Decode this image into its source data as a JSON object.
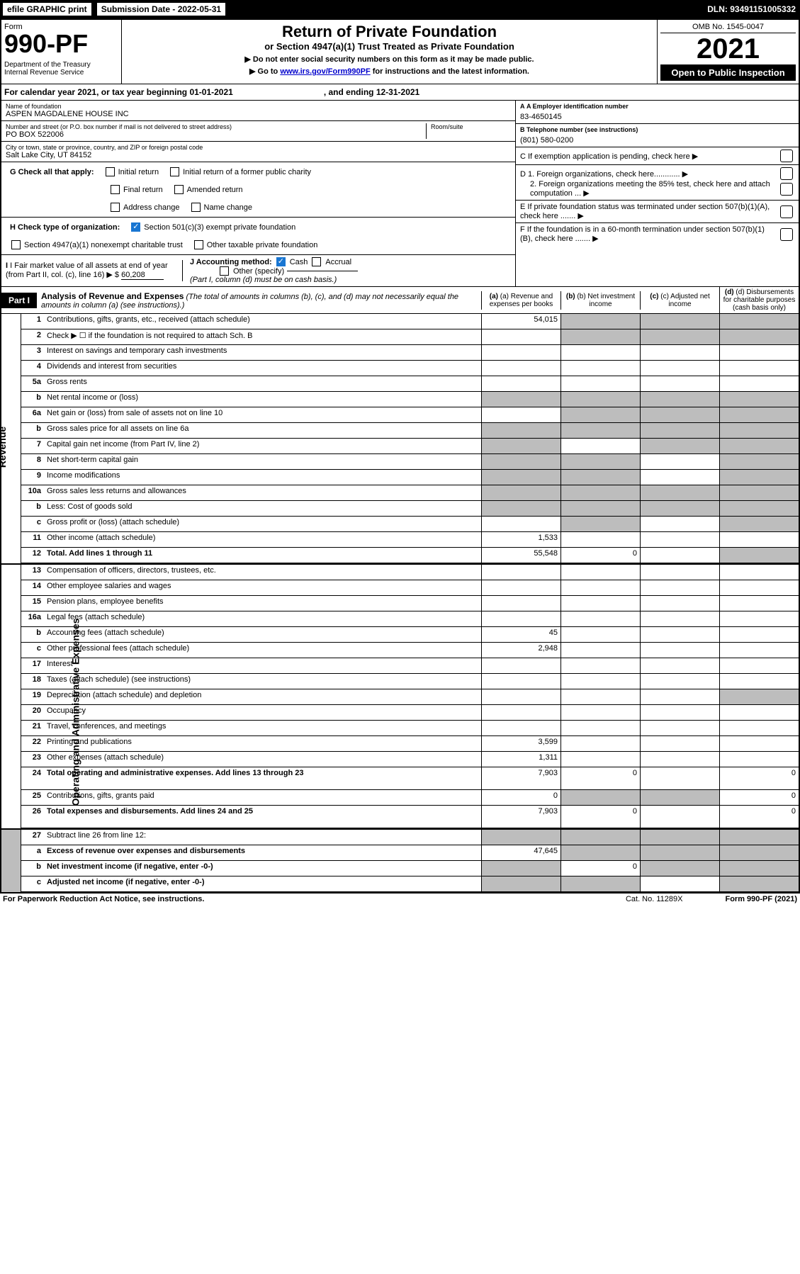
{
  "topbar": {
    "efile": "efile GRAPHIC print",
    "sub_label": "Submission Date - 2022-05-31",
    "dln": "DLN: 93491151005332"
  },
  "header": {
    "form_word": "Form",
    "form_no": "990-PF",
    "dept": "Department of the Treasury\nInternal Revenue Service",
    "title": "Return of Private Foundation",
    "subtitle": "or Section 4947(a)(1) Trust Treated as Private Foundation",
    "instr1": "▶ Do not enter social security numbers on this form as it may be made public.",
    "instr2_pre": "▶ Go to ",
    "instr2_link": "www.irs.gov/Form990PF",
    "instr2_post": " for instructions and the latest information.",
    "omb": "OMB No. 1545-0047",
    "year": "2021",
    "open": "Open to Public Inspection"
  },
  "cal": {
    "text": "For calendar year 2021, or tax year beginning 01-01-2021",
    "end": ", and ending 12-31-2021"
  },
  "left": {
    "name_lbl": "Name of foundation",
    "name": "ASPEN MAGDALENE HOUSE INC",
    "addr_lbl": "Number and street (or P.O. box number if mail is not delivered to street address)",
    "addr": "PO BOX 522006",
    "room_lbl": "Room/suite",
    "city_lbl": "City or town, state or province, country, and ZIP or foreign postal code",
    "city": "Salt Lake City, UT  84152",
    "g": "G Check all that apply:",
    "g_opts": [
      "Initial return",
      "Initial return of a former public charity",
      "Final return",
      "Amended return",
      "Address change",
      "Name change"
    ],
    "h": "H Check type of organization:",
    "h1": "Section 501(c)(3) exempt private foundation",
    "h2": "Section 4947(a)(1) nonexempt charitable trust",
    "h3": "Other taxable private foundation",
    "i": "I Fair market value of all assets at end of year (from Part II, col. (c), line 16) ▶ $",
    "i_val": "60,208",
    "j": "J Accounting method:",
    "j_cash": "Cash",
    "j_accrual": "Accrual",
    "j_other": "Other (specify)",
    "j_note": "(Part I, column (d) must be on cash basis.)"
  },
  "right": {
    "a_lbl": "A Employer identification number",
    "a": "83-4650145",
    "b_lbl": "B Telephone number (see instructions)",
    "b": "(801) 580-0200",
    "c": "C If exemption application is pending, check here ▶",
    "d1": "D 1. Foreign organizations, check here............ ▶",
    "d2": "2. Foreign organizations meeting the 85% test, check here and attach computation ... ▶",
    "e": "E If private foundation status was terminated under section 507(b)(1)(A), check here ....... ▶",
    "f": "F If the foundation is in a 60-month termination under section 507(b)(1)(B), check here ....... ▶"
  },
  "part1": {
    "tab": "Part I",
    "title": "Analysis of Revenue and Expenses",
    "note": " (The total of amounts in columns (b), (c), and (d) may not necessarily equal the amounts in column (a) (see instructions).)",
    "cols": {
      "a": "(a) Revenue and expenses per books",
      "b": "(b) Net investment income",
      "c": "(c) Adjusted net income",
      "d": "(d) Disbursements for charitable purposes (cash basis only)"
    }
  },
  "sides": {
    "rev": "Revenue",
    "exp": "Operating and Administrative Expenses"
  },
  "rows": [
    {
      "n": "1",
      "t": "Contributions, gifts, grants, etc., received (attach schedule)",
      "a": "54,015",
      "gb": "bcd"
    },
    {
      "n": "2",
      "t": "Check ▶ ☐ if the foundation is not required to attach Sch. B",
      "noabcd": true,
      "gb": "bcd"
    },
    {
      "n": "3",
      "t": "Interest on savings and temporary cash investments"
    },
    {
      "n": "4",
      "t": "Dividends and interest from securities"
    },
    {
      "n": "5a",
      "t": "Gross rents"
    },
    {
      "n": "b",
      "t": "Net rental income or (loss)",
      "noabcd": true,
      "gb": "abcd"
    },
    {
      "n": "6a",
      "t": "Net gain or (loss) from sale of assets not on line 10",
      "gb": "bcd"
    },
    {
      "n": "b",
      "t": "Gross sales price for all assets on line 6a",
      "noabcd": true,
      "gb": "abcd"
    },
    {
      "n": "7",
      "t": "Capital gain net income (from Part IV, line 2)",
      "gb": "acd"
    },
    {
      "n": "8",
      "t": "Net short-term capital gain",
      "gb": "abd"
    },
    {
      "n": "9",
      "t": "Income modifications",
      "gb": "abd"
    },
    {
      "n": "10a",
      "t": "Gross sales less returns and allowances",
      "noabcd": true,
      "gb": "abcd"
    },
    {
      "n": "b",
      "t": "Less: Cost of goods sold",
      "noabcd": true,
      "gb": "abcd"
    },
    {
      "n": "c",
      "t": "Gross profit or (loss) (attach schedule)",
      "gb": "bd"
    },
    {
      "n": "11",
      "t": "Other income (attach schedule)",
      "a": "1,533"
    },
    {
      "n": "12",
      "t": "Total. Add lines 1 through 11",
      "a": "55,548",
      "b": "0",
      "bold": true,
      "gb": "d"
    }
  ],
  "rows2": [
    {
      "n": "13",
      "t": "Compensation of officers, directors, trustees, etc."
    },
    {
      "n": "14",
      "t": "Other employee salaries and wages"
    },
    {
      "n": "15",
      "t": "Pension plans, employee benefits"
    },
    {
      "n": "16a",
      "t": "Legal fees (attach schedule)"
    },
    {
      "n": "b",
      "t": "Accounting fees (attach schedule)",
      "a": "45"
    },
    {
      "n": "c",
      "t": "Other professional fees (attach schedule)",
      "a": "2,948"
    },
    {
      "n": "17",
      "t": "Interest"
    },
    {
      "n": "18",
      "t": "Taxes (attach schedule) (see instructions)"
    },
    {
      "n": "19",
      "t": "Depreciation (attach schedule) and depletion",
      "gb": "d"
    },
    {
      "n": "20",
      "t": "Occupancy"
    },
    {
      "n": "21",
      "t": "Travel, conferences, and meetings"
    },
    {
      "n": "22",
      "t": "Printing and publications",
      "a": "3,599"
    },
    {
      "n": "23",
      "t": "Other expenses (attach schedule)",
      "a": "1,311"
    },
    {
      "n": "24",
      "t": "Total operating and administrative expenses. Add lines 13 through 23",
      "a": "7,903",
      "b": "0",
      "d": "0",
      "bold": true,
      "tall": true
    },
    {
      "n": "25",
      "t": "Contributions, gifts, grants paid",
      "a": "0",
      "gb": "bc",
      "d": "0"
    },
    {
      "n": "26",
      "t": "Total expenses and disbursements. Add lines 24 and 25",
      "a": "7,903",
      "b": "0",
      "d": "0",
      "bold": true,
      "tall": true
    }
  ],
  "rows3": [
    {
      "n": "27",
      "t": "Subtract line 26 from line 12:",
      "gb": "abcd"
    },
    {
      "n": "a",
      "t": "Excess of revenue over expenses and disbursements",
      "a": "47,645",
      "gb": "bcd",
      "bold": true
    },
    {
      "n": "b",
      "t": "Net investment income (if negative, enter -0-)",
      "b": "0",
      "gb": "acd",
      "bold": true
    },
    {
      "n": "c",
      "t": "Adjusted net income (if negative, enter -0-)",
      "gb": "abd",
      "bold": true
    }
  ],
  "footer": {
    "l": "For Paperwork Reduction Act Notice, see instructions.",
    "c": "Cat. No. 11289X",
    "r": "Form 990-PF (2021)"
  }
}
